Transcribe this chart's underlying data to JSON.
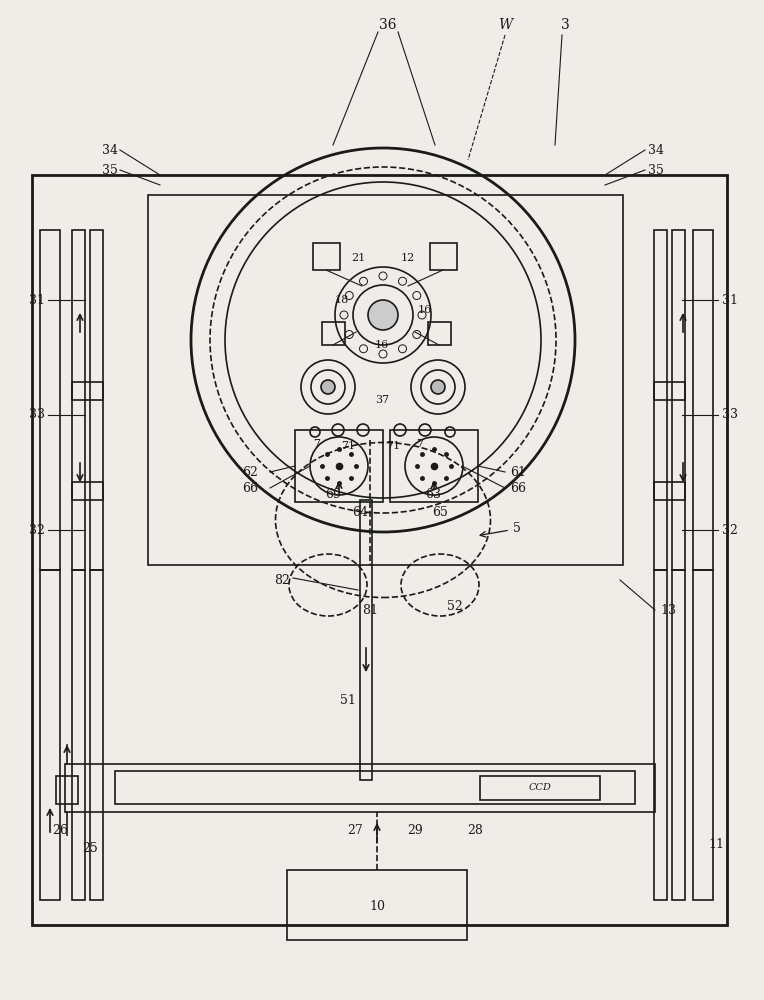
{
  "bg_color": "#f0ede8",
  "line_color": "#1a1a1a",
  "fig_width": 7.64,
  "fig_height": 10.0
}
